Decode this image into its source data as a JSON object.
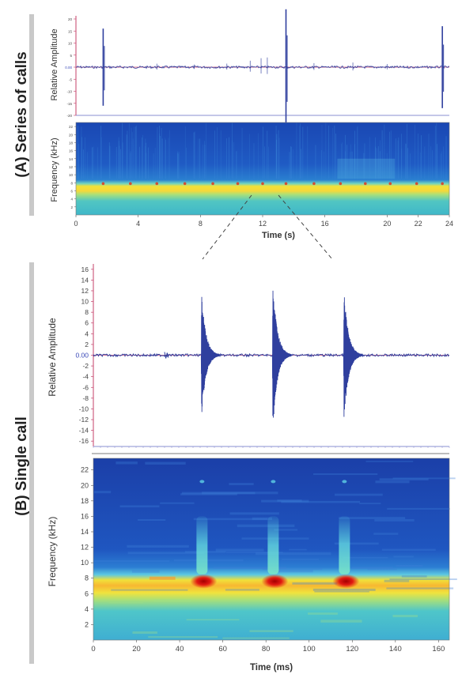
{
  "panels": {
    "a_label": "(A) Series of calls",
    "b_label": "(B) Single call"
  },
  "chart_data": [
    {
      "id": "a-waveform",
      "type": "line",
      "ylabel": "Relative Amplitude",
      "ylim": [
        -20,
        20
      ],
      "yticks": [
        "20",
        "15",
        "10",
        "5",
        "0.00",
        "-5",
        "-10",
        "-15",
        "-20"
      ],
      "yvals": [
        20,
        15,
        10,
        5,
        0,
        -5,
        -10,
        -15,
        -20
      ],
      "xlim": [
        0,
        24
      ],
      "series_color": "#2f3f9e",
      "events": [
        {
          "t": 1.75,
          "amp": 16
        },
        {
          "t": 13.5,
          "amp": 24
        },
        {
          "t": 23.55,
          "amp": 17
        }
      ]
    },
    {
      "id": "a-spectrogram",
      "type": "heatmap",
      "xlabel": "Time (s)",
      "ylabel": "Frequency (kHz)",
      "xlim": [
        0,
        24
      ],
      "ylim": [
        0,
        23
      ],
      "xticks": [
        "0",
        "4",
        "8",
        "12",
        "16",
        "20",
        "22",
        "24"
      ],
      "xtick_vals": [
        0,
        4,
        8,
        12,
        16,
        20,
        22,
        24
      ],
      "yticks": [
        "2",
        "4",
        "6",
        "8",
        "10",
        "12",
        "14",
        "16",
        "18",
        "20",
        "22"
      ],
      "ytick_vals": [
        2,
        4,
        6,
        8,
        10,
        12,
        14,
        16,
        18,
        20,
        22
      ],
      "band_khz": [
        6.5,
        9
      ]
    },
    {
      "id": "b-waveform",
      "type": "line",
      "ylabel": "Relative Amplitude",
      "ylim": [
        -17,
        17
      ],
      "yticks": [
        "16",
        "14",
        "12",
        "10",
        "8",
        "6",
        "4",
        "2",
        "0.00",
        "-2",
        "-4",
        "-6",
        "-8",
        "-10",
        "-12",
        "-14",
        "-16"
      ],
      "yvals": [
        16,
        14,
        12,
        10,
        8,
        6,
        4,
        2,
        0,
        -2,
        -4,
        -6,
        -8,
        -10,
        -12,
        -14,
        -16
      ],
      "xlim": [
        0,
        165
      ],
      "series_color": "#2f3f9e",
      "pulses": [
        {
          "t_ms": 50,
          "amp": 12.5
        },
        {
          "t_ms": 83,
          "amp": 15.5
        },
        {
          "t_ms": 116,
          "amp": 13.5
        }
      ]
    },
    {
      "id": "b-spectrogram",
      "type": "heatmap",
      "xlabel": "Time (ms)",
      "ylabel": "Frequency (kHz)",
      "xlim": [
        0,
        165
      ],
      "ylim": [
        0,
        23.5
      ],
      "xticks": [
        "0",
        "20",
        "40",
        "60",
        "80",
        "100",
        "120",
        "140",
        "160"
      ],
      "xtick_vals": [
        0,
        20,
        40,
        60,
        80,
        100,
        120,
        140,
        160
      ],
      "yticks": [
        "2",
        "4",
        "6",
        "8",
        "10",
        "12",
        "14",
        "16",
        "18",
        "20",
        "22"
      ],
      "ytick_vals": [
        2,
        4,
        6,
        8,
        10,
        12,
        14,
        16,
        18,
        20,
        22
      ],
      "band_khz": [
        6.5,
        8.5
      ],
      "pulses_ms": [
        50,
        83,
        116
      ]
    }
  ]
}
